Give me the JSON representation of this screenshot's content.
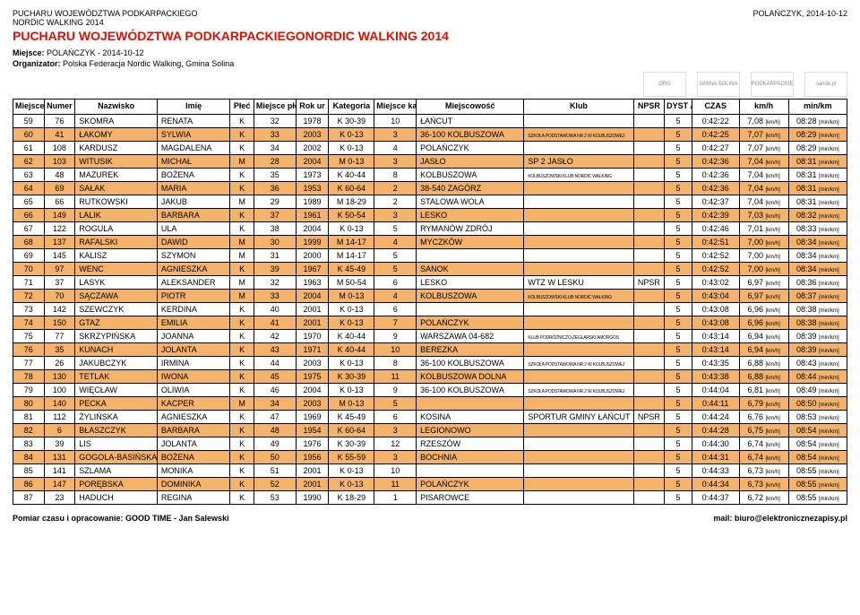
{
  "header": {
    "top_left_line1": "PUCHARU WOJEWÓDZTWA PODKARPACKIEGO",
    "top_left_line2": "NORDIC WALKING 2014",
    "top_right": "POLAŃCZYK, 2014-10-12",
    "title": "PUCHARU WOJEWÓDZTWA PODKARPACKIEGONORDIC WALKING 2014",
    "meta1_label": "Miejsce:",
    "meta1_value": " POLAŃCZYK - 2014-10-12",
    "meta2_label": "Organizator:",
    "meta2_value": " Polska Federacja Nordic Walking, Gmina Solina"
  },
  "columns": [
    "Miejsce Open",
    "Numer",
    "Nazwisko",
    "Imię",
    "Płeć",
    "Miejsce płeć M / K",
    "Rok ur",
    "Kategoria",
    "Miejsce kat. M / K",
    "Miejscowość",
    "Klub",
    "NPSR",
    "DYST ANS",
    "CZAS",
    "km/h",
    "min/km"
  ],
  "rows": [
    {
      "hl": false,
      "c": [
        "59",
        "76",
        "SKOMRA",
        "RENATA",
        "K",
        "32",
        "1978",
        "K 30-39",
        "10",
        "ŁAŃCUT",
        "",
        "",
        "5",
        "0:42:22",
        "7,08",
        "08:28"
      ]
    },
    {
      "hl": true,
      "c": [
        "60",
        "41",
        "ŁAKOMY",
        "SYLWIA",
        "K",
        "33",
        "2003",
        "K 0-13",
        "3",
        "36-100 KOLBUSZOWA",
        "SZKOŁA PODSTAWOWA NR 2 W KOLBUSZOWEJ",
        "",
        "5",
        "0:42:25",
        "7,07",
        "08:29"
      ]
    },
    {
      "hl": false,
      "c": [
        "61",
        "108",
        "KARDUSZ",
        "MAGDALENA",
        "K",
        "34",
        "2002",
        "K 0-13",
        "4",
        "POLAŃCZYK",
        "",
        "",
        "5",
        "0:42:27",
        "7,07",
        "08:29"
      ]
    },
    {
      "hl": true,
      "c": [
        "62",
        "103",
        "WITUSIK",
        "MICHAŁ",
        "M",
        "28",
        "2004",
        "M 0-13",
        "3",
        "JASŁO",
        "SP 2 JASŁO",
        "",
        "5",
        "0:42:36",
        "7,04",
        "08:31"
      ]
    },
    {
      "hl": false,
      "c": [
        "63",
        "48",
        "MAZUREK",
        "BOŻENA",
        "K",
        "35",
        "1973",
        "K 40-44",
        "8",
        "KOLBUSZOWA",
        "KOLBUSZOWSKI KLUB NORDIC WALKING",
        "",
        "5",
        "0:42:36",
        "7,04",
        "08:31"
      ]
    },
    {
      "hl": true,
      "c": [
        "64",
        "69",
        "SAŁAK",
        "MARIA",
        "K",
        "36",
        "1953",
        "K 60-64",
        "2",
        "38-540 ZAGÓRZ",
        "",
        "",
        "5",
        "0:42:36",
        "7,04",
        "08:31"
      ]
    },
    {
      "hl": false,
      "c": [
        "65",
        "66",
        "RUTKOWSKI",
        "JAKUB",
        "M",
        "29",
        "1989",
        "M 18-29",
        "2",
        "STALOWA WOLA",
        "",
        "",
        "5",
        "0:42:37",
        "7,04",
        "08:31"
      ]
    },
    {
      "hl": true,
      "c": [
        "66",
        "149",
        "LALIK",
        "BARBARA",
        "K",
        "37",
        "1961",
        "K 50-54",
        "3",
        "LESKO",
        "",
        "",
        "5",
        "0:42:39",
        "7,03",
        "08:32"
      ]
    },
    {
      "hl": false,
      "c": [
        "67",
        "122",
        "ROGULA",
        "ULA",
        "K",
        "38",
        "2004",
        "K 0-13",
        "5",
        "RYMANÓW ZDRÓJ",
        "",
        "",
        "5",
        "0:42:46",
        "7,01",
        "08:33"
      ]
    },
    {
      "hl": true,
      "c": [
        "68",
        "137",
        "RAFALSKI",
        "DAWID",
        "M",
        "30",
        "1999",
        "M 14-17",
        "4",
        "MYCZKÓW",
        "",
        "",
        "5",
        "0:42:51",
        "7,00",
        "08:34"
      ]
    },
    {
      "hl": false,
      "c": [
        "69",
        "145",
        "KALISZ",
        "SZYMON",
        "M",
        "31",
        "2000",
        "M 14-17",
        "5",
        "",
        "",
        "",
        "5",
        "0:42:52",
        "7,00",
        "08:34"
      ]
    },
    {
      "hl": true,
      "c": [
        "70",
        "97",
        "WENC",
        "AGNIESZKA",
        "K",
        "39",
        "1967",
        "K 45-49",
        "5",
        "SANOK",
        "",
        "",
        "5",
        "0:42:52",
        "7,00",
        "08:34"
      ]
    },
    {
      "hl": false,
      "c": [
        "71",
        "37",
        "LASYK",
        "ALEKSANDER",
        "M",
        "32",
        "1963",
        "M 50-54",
        "6",
        "LESKO",
        "WTZ W LESKU",
        "NPSR",
        "5",
        "0:43:02",
        "6,97",
        "08:36"
      ]
    },
    {
      "hl": true,
      "c": [
        "72",
        "70",
        "SĄCZAWA",
        "PIOTR",
        "M",
        "33",
        "2004",
        "M 0-13",
        "4",
        "KOLBUSZOWA",
        "KOLBUSZOWSKI KLUB NORDIC WALKING",
        "",
        "5",
        "0:43:04",
        "6,97",
        "08:37"
      ]
    },
    {
      "hl": false,
      "c": [
        "73",
        "142",
        "SZEWCZYK",
        "KERDINA",
        "K",
        "40",
        "2001",
        "K 0-13",
        "6",
        "",
        "",
        "",
        "5",
        "0:43:08",
        "6,96",
        "08:38"
      ]
    },
    {
      "hl": true,
      "c": [
        "74",
        "150",
        "GTAZ",
        "EMILIA",
        "K",
        "41",
        "2001",
        "K 0-13",
        "7",
        "POLAŃCZYK",
        "",
        "",
        "5",
        "0:43:08",
        "6,96",
        "08:38"
      ]
    },
    {
      "hl": false,
      "c": [
        "75",
        "77",
        "SKRZYPIŃSKA",
        "JOANNA",
        "K",
        "42",
        "1970",
        "K 40-44",
        "9",
        "WARSZAWA 04-682",
        "KLUB PODRÓŻNICZO-ŻEGLARSKI AMORGOS",
        "",
        "5",
        "0:43:14",
        "6,94",
        "08:39"
      ]
    },
    {
      "hl": true,
      "c": [
        "76",
        "35",
        "KUNACH",
        "JOLANTA",
        "K",
        "43",
        "1971",
        "K 40-44",
        "10",
        "BEREZKA",
        "",
        "",
        "5",
        "0:43:14",
        "6,94",
        "08:39"
      ]
    },
    {
      "hl": false,
      "c": [
        "77",
        "26",
        "JAKUBCZYK",
        "IRMINA",
        "K",
        "44",
        "2003",
        "K 0-13",
        "8",
        "36-100 KOLBUSZOWA",
        "SZKOŁA PODSTAWOWA NR 2 W KOLBUSZOWEJ",
        "",
        "5",
        "0:43:35",
        "6,88",
        "08:43"
      ]
    },
    {
      "hl": true,
      "c": [
        "78",
        "130",
        "TETLAK",
        "IWONA",
        "K",
        "45",
        "1975",
        "K 30-39",
        "11",
        "KOLBUSZOWA DOLNA",
        "",
        "",
        "5",
        "0:43:38",
        "6,88",
        "08:44"
      ]
    },
    {
      "hl": false,
      "c": [
        "79",
        "100",
        "WIĘCŁAW",
        "OLIWIA",
        "K",
        "46",
        "2004",
        "K 0-13",
        "9",
        "36-100 KOLBUSZOWA",
        "SZKOŁA PODSTAWOWA NR 2 W KOLBUSZOWEJ",
        "",
        "5",
        "0:44:04",
        "6,81",
        "08:49"
      ]
    },
    {
      "hl": true,
      "c": [
        "80",
        "140",
        "PECKA",
        "KACPER",
        "M",
        "34",
        "2003",
        "M 0-13",
        "5",
        "",
        "",
        "",
        "5",
        "0:44:11",
        "6,79",
        "08:50"
      ]
    },
    {
      "hl": false,
      "c": [
        "81",
        "112",
        "ŻYLIŃSKA",
        "AGNIESZKA",
        "K",
        "47",
        "1969",
        "K 45-49",
        "6",
        "KOSINA",
        "SPORTUR GMINY ŁAŃCUT",
        "NPSR",
        "5",
        "0:44:24",
        "6,76",
        "08:53"
      ]
    },
    {
      "hl": true,
      "c": [
        "82",
        "6",
        "BŁASZCZYK",
        "BARBARA",
        "K",
        "48",
        "1954",
        "K 60-64",
        "3",
        "LEGIONOWO",
        "",
        "",
        "5",
        "0:44:28",
        "6,75",
        "08:54"
      ]
    },
    {
      "hl": false,
      "c": [
        "83",
        "39",
        "LIS",
        "JOLANTA",
        "K",
        "49",
        "1976",
        "K 30-39",
        "12",
        "RZESZÓW",
        "",
        "",
        "5",
        "0:44:30",
        "6,74",
        "08:54"
      ]
    },
    {
      "hl": true,
      "c": [
        "84",
        "131",
        "GOGOLA-BASIŃSKA",
        "BOŻENA",
        "K",
        "50",
        "1956",
        "K 55-59",
        "3",
        "BOCHNIA",
        "",
        "",
        "5",
        "0:44:31",
        "6,74",
        "08:54"
      ]
    },
    {
      "hl": false,
      "c": [
        "85",
        "141",
        "SZLAMA",
        "MONIKA",
        "K",
        "51",
        "2001",
        "K 0-13",
        "10",
        "",
        "",
        "",
        "5",
        "0:44:33",
        "6,73",
        "08:55"
      ]
    },
    {
      "hl": true,
      "c": [
        "86",
        "147",
        "PORĘBSKA",
        "DOMINIKA",
        "K",
        "52",
        "2001",
        "K 0-13",
        "11",
        "POLAŃCZYK",
        "",
        "",
        "5",
        "0:44:34",
        "6,73",
        "08:55"
      ]
    },
    {
      "hl": false,
      "c": [
        "87",
        "23",
        "HADUCH",
        "REGINA",
        "K",
        "53",
        "1990",
        "K 18-29",
        "1",
        "PISAROWCE",
        "",
        "",
        "5",
        "0:44:37",
        "6,72",
        "08:55"
      ]
    }
  ],
  "footer": {
    "left": "Pomiar czasu i opracowanie: GOOD TIME - Jan Salewski",
    "right": "mail: biuro@elektronicznezapisy.pl"
  },
  "units": {
    "kmh": "[km/h]",
    "minkm": "[min/km]"
  },
  "colors": {
    "title": "#d10",
    "highlight_bg": "#f4b26a",
    "border": "#000"
  }
}
